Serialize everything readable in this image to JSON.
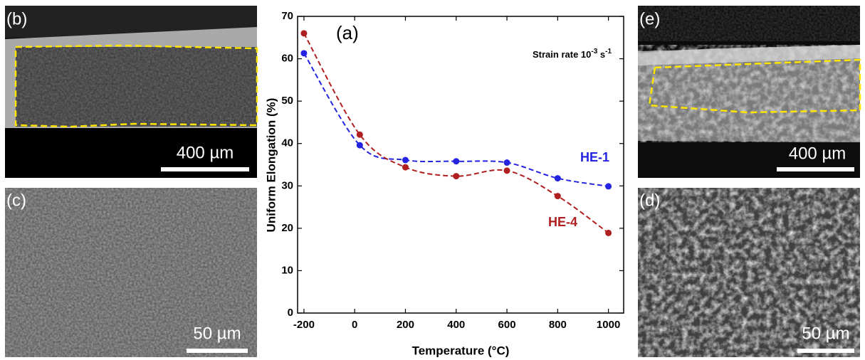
{
  "chart_data": {
    "type": "line",
    "label": "(a)",
    "annotation": [
      "Strain rate 10",
      "-3",
      " s",
      "-1"
    ],
    "xlabel": "Temperature (°C)",
    "ylabel": "Uniform Elongation (%)",
    "x": [
      -200,
      20,
      200,
      400,
      600,
      800,
      1000
    ],
    "series": [
      {
        "name": "HE-1",
        "color": "#2424e0",
        "values": [
          61.3,
          39.6,
          36.1,
          35.8,
          35.5,
          31.8,
          29.9
        ]
      },
      {
        "name": "HE-4",
        "color": "#b02020",
        "values": [
          66,
          42.1,
          34.4,
          32.3,
          33.6,
          27.6,
          18.9
        ]
      }
    ],
    "xlim": [
      -225,
      1060
    ],
    "ylim": [
      0,
      70
    ],
    "xticks": [
      -200,
      0,
      200,
      400,
      600,
      800,
      1000
    ],
    "yticks": [
      0,
      10,
      20,
      30,
      40,
      50,
      60,
      70
    ]
  },
  "panels": [
    {
      "label": "(b)",
      "scale": "400 µm"
    },
    {
      "label": "(c)",
      "scale": "50 µm"
    },
    {
      "label": "(e)",
      "scale": "400 µm"
    },
    {
      "label": "(d)",
      "scale": "50 µm"
    }
  ]
}
